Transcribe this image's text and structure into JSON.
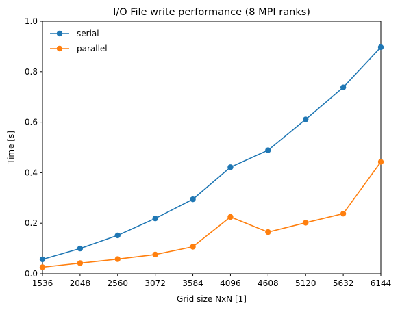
{
  "chart_data": {
    "type": "line",
    "title": "I/O File write performance (8 MPI ranks)",
    "xlabel": "Grid size NxN [1]",
    "ylabel": "Time [s]",
    "x": [
      1536,
      2048,
      2560,
      3072,
      3584,
      4096,
      4608,
      5120,
      5632,
      6144
    ],
    "xlim": [
      1536,
      6144
    ],
    "ylim": [
      0.0,
      1.0
    ],
    "yticks": [
      "0.0",
      "0.2",
      "0.4",
      "0.6",
      "0.8",
      "1.0"
    ],
    "grid": false,
    "legend_position": "top-left",
    "series": [
      {
        "name": "serial",
        "color": "#1f77b4",
        "marker": "circle",
        "values": [
          0.057,
          0.1,
          0.152,
          0.219,
          0.295,
          0.422,
          0.489,
          0.611,
          0.738,
          0.897
        ]
      },
      {
        "name": "parallel",
        "color": "#ff7f0e",
        "marker": "circle",
        "values": [
          0.026,
          0.042,
          0.058,
          0.076,
          0.107,
          0.225,
          0.165,
          0.202,
          0.238,
          0.443
        ]
      }
    ]
  }
}
